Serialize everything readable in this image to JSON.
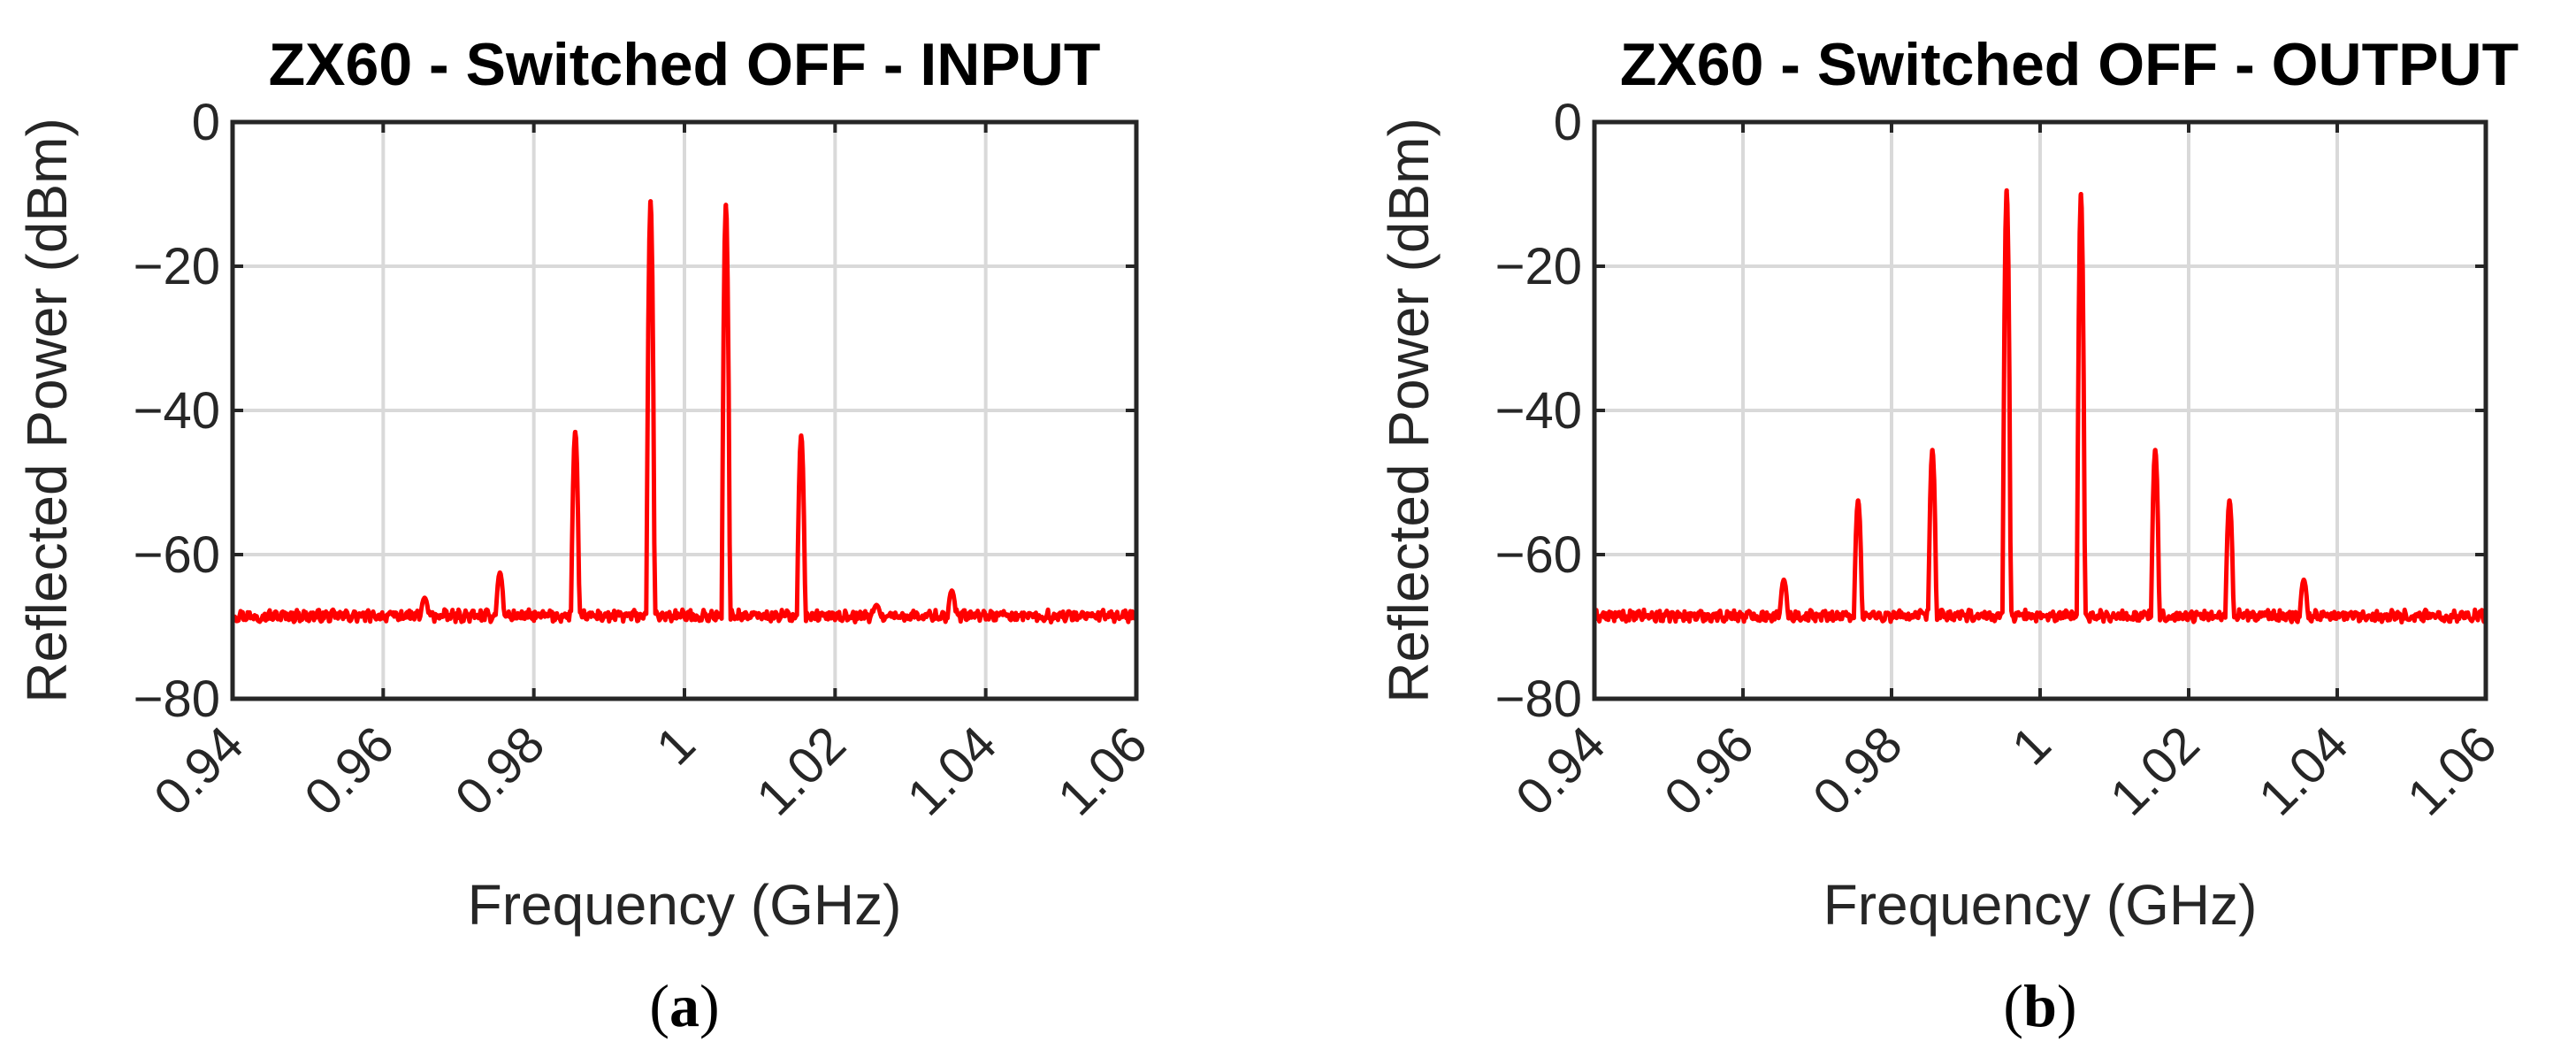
{
  "chart_data": [
    {
      "type": "line",
      "title": "ZX60 - Switched OFF - INPUT",
      "xlabel": "Frequency (GHz)",
      "ylabel": "Reflected Power (dBm)",
      "xlim": [
        0.94,
        1.06
      ],
      "ylim": [
        -80,
        0
      ],
      "x_ticks": [
        0.94,
        0.96,
        0.98,
        1,
        1.02,
        1.04,
        1.06
      ],
      "x_tick_labels": [
        "0.94",
        "0.96",
        "0.98",
        "1",
        "1.02",
        "1.04",
        "1.06"
      ],
      "y_ticks": [
        0,
        -20,
        -40,
        -60,
        -80
      ],
      "y_tick_labels": [
        "0",
        "−20",
        "−40",
        "−60",
        "−80"
      ],
      "grid": true,
      "series": [
        {
          "name": "Reflected power",
          "color": "#ff0000",
          "noise_floor": -68.5,
          "peaks": [
            {
              "x": 0.9655,
              "y": -66
            },
            {
              "x": 0.9755,
              "y": -62.5
            },
            {
              "x": 0.9855,
              "y": -43
            },
            {
              "x": 0.9955,
              "y": -11
            },
            {
              "x": 1.0055,
              "y": -11.5
            },
            {
              "x": 1.0155,
              "y": -43.5
            },
            {
              "x": 1.0255,
              "y": -67
            },
            {
              "x": 1.0355,
              "y": -65
            }
          ]
        }
      ],
      "caption": {
        "open": "(",
        "letter": "a",
        "close": ")"
      }
    },
    {
      "type": "line",
      "title": "ZX60 - Switched OFF - OUTPUT",
      "xlabel": "Frequency (GHz)",
      "ylabel": "Reflected Power (dBm)",
      "xlim": [
        0.94,
        1.06
      ],
      "ylim": [
        -80,
        0
      ],
      "x_ticks": [
        0.94,
        0.96,
        0.98,
        1,
        1.02,
        1.04,
        1.06
      ],
      "x_tick_labels": [
        "0.94",
        "0.96",
        "0.98",
        "1",
        "1.02",
        "1.04",
        "1.06"
      ],
      "y_ticks": [
        0,
        -20,
        -40,
        -60,
        -80
      ],
      "y_tick_labels": [
        "0",
        "−20",
        "−40",
        "−60",
        "−80"
      ],
      "grid": true,
      "series": [
        {
          "name": "Reflected power",
          "color": "#ff0000",
          "noise_floor": -68.5,
          "peaks": [
            {
              "x": 0.9655,
              "y": -63.5
            },
            {
              "x": 0.9755,
              "y": -52.5
            },
            {
              "x": 0.9855,
              "y": -45.5
            },
            {
              "x": 0.9955,
              "y": -9.5
            },
            {
              "x": 1.0055,
              "y": -10
            },
            {
              "x": 1.0155,
              "y": -45.5
            },
            {
              "x": 1.0255,
              "y": -52.5
            },
            {
              "x": 1.0355,
              "y": -63.5
            }
          ]
        }
      ],
      "caption": {
        "open": "(",
        "letter": "b",
        "close": ")"
      }
    }
  ]
}
